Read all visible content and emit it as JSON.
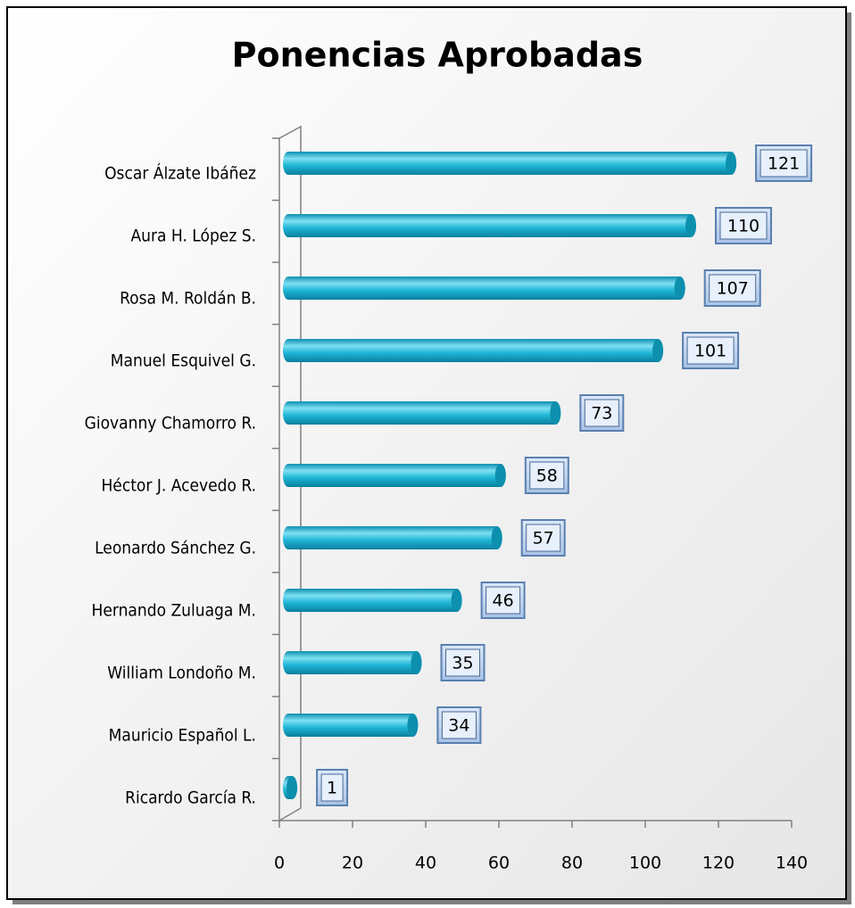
{
  "chart_data": {
    "type": "bar",
    "orientation": "horizontal",
    "title": "Ponencias Aprobadas",
    "categories": [
      "Oscar Álzate Ibáñez",
      "Aura H. López S.",
      "Rosa M. Roldán B.",
      "Manuel Esquivel G.",
      "Giovanny Chamorro R.",
      "Héctor J. Acevedo R.",
      "Leonardo Sánchez G.",
      "Hernando Zuluaga M.",
      "William Londoño M.",
      "Mauricio Español L.",
      "Ricardo García R."
    ],
    "values": [
      121,
      110,
      107,
      101,
      73,
      58,
      57,
      46,
      35,
      34,
      1
    ],
    "color": "#1fb6d6",
    "xlim": [
      0,
      140
    ],
    "xticks": [
      0,
      20,
      40,
      60,
      80,
      100,
      120,
      140
    ],
    "grid": false
  }
}
